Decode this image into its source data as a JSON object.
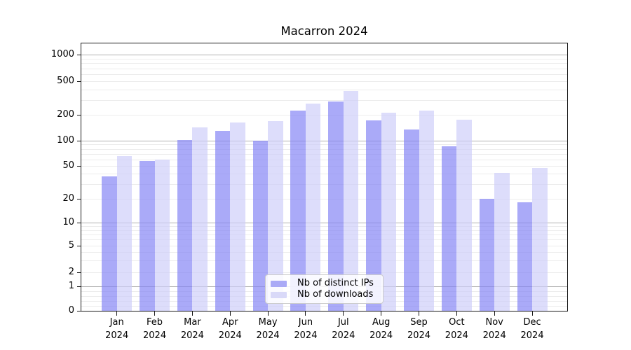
{
  "title": "Macarron 2024",
  "legend": {
    "items": [
      {
        "label": "Nb of distinct IPs",
        "swatch": "#aaaaf6"
      },
      {
        "label": "Nb of downloads",
        "swatch": "#d9d9f8"
      }
    ]
  },
  "colors": {
    "dark_bar": "rgba(134,134,245,0.7)",
    "light_bar": "rgba(206,206,249,0.7)",
    "dark_bar_solid": "#aaaaf6",
    "light_bar_solid": "#d9d9f8",
    "major_grid": "#b0b0b0",
    "minor_grid": "#ececec",
    "spine": "#1a1a1a"
  },
  "chart_data": {
    "type": "bar",
    "title": "Macarron 2024",
    "categories": [
      "Jan 2024",
      "Feb 2024",
      "Mar 2024",
      "Apr 2024",
      "May 2024",
      "Jun 2024",
      "Jul 2024",
      "Aug 2024",
      "Sep 2024",
      "Oct 2024",
      "Nov 2024",
      "Dec 2024"
    ],
    "series": [
      {
        "name": "Nb of distinct IPs",
        "values": [
          37,
          57,
          102,
          130,
          100,
          225,
          290,
          172,
          135,
          85,
          20,
          18
        ]
      },
      {
        "name": "Nb of downloads",
        "values": [
          65,
          60,
          142,
          163,
          168,
          270,
          380,
          212,
          223,
          176,
          41,
          47
        ]
      }
    ],
    "yscale": "symlog",
    "y_ticks": [
      0,
      1,
      2,
      5,
      10,
      20,
      50,
      100,
      200,
      500,
      1000
    ],
    "ylim": [
      0,
      1340
    ],
    "grid": "horizontal, major and minor",
    "legend_position": "lower center"
  }
}
